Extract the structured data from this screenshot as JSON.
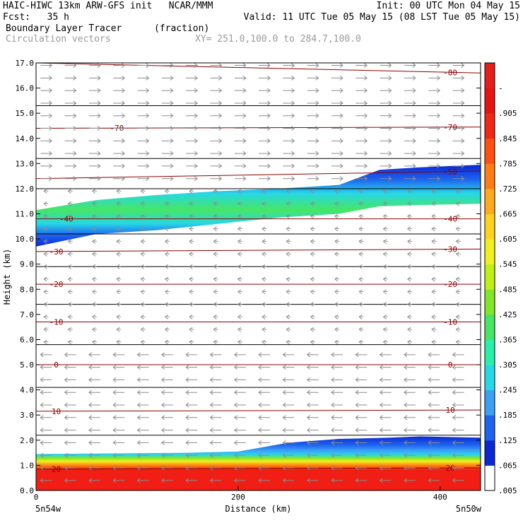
{
  "header": {
    "line1_left": "HAIC-HIWC 13km ARW-GFS init   NCAR/MMM",
    "line1_right": "Init: 00 UTC Mon 04 May 15",
    "line2_left": "Fcst:   35 h",
    "line2_right": "Valid: 11 UTC Tue 05 May 15 (08 LST Tue 05 May 15)",
    "field1_name": "Boundary Layer Tracer",
    "field1_units": "(fraction)",
    "field2_name": "Circulation vectors",
    "xsec_coords": "XY= 251.0,100.0 to 284.7,100.0"
  },
  "colors": {
    "temperature_contour": "#8b0000",
    "vector": "#8c8c8c",
    "height_line": "#000000"
  },
  "chart_data": {
    "type": "heatmap",
    "title": "Boundary Layer Tracer",
    "xlabel": "Distance (km)",
    "ylabel": "Height (km)",
    "xlim": [
      0,
      440
    ],
    "ylim": [
      0,
      17
    ],
    "x_ticks": [
      0,
      200,
      400
    ],
    "y_ticks": [
      "0.0",
      "1.0",
      "2.0",
      "3.0",
      "4.0",
      "5.0",
      "6.0",
      "7.0",
      "8.0",
      "9.0",
      "10.0",
      "11.0",
      "12.0",
      "13.0",
      "14.0",
      "15.0",
      "16.0",
      "17.0"
    ],
    "endpoint_left": "5n54w",
    "endpoint_right": "5n50w",
    "colorbar": {
      "labels": [
        ".005",
        ".065",
        ".125",
        ".185",
        ".245",
        ".305",
        ".365",
        ".425",
        ".485",
        ".545",
        ".605",
        ".665",
        ".725",
        ".785",
        ".845",
        ".905",
        "-"
      ],
      "colors": [
        "#ffffff",
        "#0a28d2",
        "#1e64f0",
        "#3ca0f5",
        "#28d7e6",
        "#28f0aa",
        "#46e664",
        "#82e628",
        "#bef014",
        "#f0f01e",
        "#ffd21e",
        "#ffaa1e",
        "#ff7d14",
        "#ff5014",
        "#f02814",
        "#e61414",
        "#e61e1e"
      ]
    },
    "tracer_layers": [
      {
        "name": "boundary-layer",
        "x": [
          0,
          150,
          200,
          250,
          300,
          350,
          380,
          440
        ],
        "bottom": [
          0,
          0,
          0,
          0,
          0,
          0,
          0,
          0
        ],
        "top": [
          1.45,
          1.5,
          1.55,
          1.9,
          2.05,
          2.1,
          2.15,
          2.1
        ]
      },
      {
        "name": "upper-plume",
        "x": [
          0,
          60,
          120,
          180,
          240,
          300,
          340,
          380,
          440
        ],
        "bottom": [
          9.7,
          10.2,
          10.35,
          10.6,
          10.85,
          11.0,
          11.3,
          11.35,
          11.4
        ],
        "top": [
          11.15,
          11.55,
          11.75,
          11.9,
          12.0,
          12.15,
          12.75,
          12.85,
          12.95
        ]
      }
    ],
    "temperature_contours": [
      {
        "label": "-80",
        "y0": 17.0,
        "y1": 16.6,
        "label_x": [
          410
        ]
      },
      {
        "label": "-70",
        "y0": 14.4,
        "y1": 14.45,
        "label_x": [
          80,
          410
        ]
      },
      {
        "label": "-50",
        "y0": 12.4,
        "y1": 12.7,
        "label_x": [
          410
        ]
      },
      {
        "label": "-40",
        "y0": 10.8,
        "y1": 10.8,
        "label_x": [
          30,
          410
        ]
      },
      {
        "label": "-30",
        "y0": 9.5,
        "y1": 9.6,
        "label_x": [
          20,
          410
        ]
      },
      {
        "label": "-20",
        "y0": 8.2,
        "y1": 8.2,
        "label_x": [
          20,
          410
        ]
      },
      {
        "label": "-10",
        "y0": 6.7,
        "y1": 6.7,
        "label_x": [
          20,
          410
        ]
      },
      {
        "label": "0",
        "y0": 5.0,
        "y1": 5.0,
        "label_x": [
          20,
          410
        ]
      },
      {
        "label": "10",
        "y0": 3.15,
        "y1": 3.2,
        "label_x": [
          20,
          410
        ]
      },
      {
        "label": "20",
        "y0": 0.85,
        "y1": 0.9,
        "label_x": [
          20,
          410
        ]
      }
    ],
    "unlabeled_contours": [
      15.3,
      13.2,
      12.0,
      10.2,
      8.9,
      7.4,
      5.8,
      4.1,
      2.2
    ],
    "wind_regimes": [
      {
        "from": 12.2,
        "to": 17.0,
        "direction": "east"
      },
      {
        "from": 5.5,
        "to": 12.2,
        "direction": "weak-west"
      },
      {
        "from": 0.2,
        "to": 5.5,
        "direction": "west"
      }
    ]
  }
}
